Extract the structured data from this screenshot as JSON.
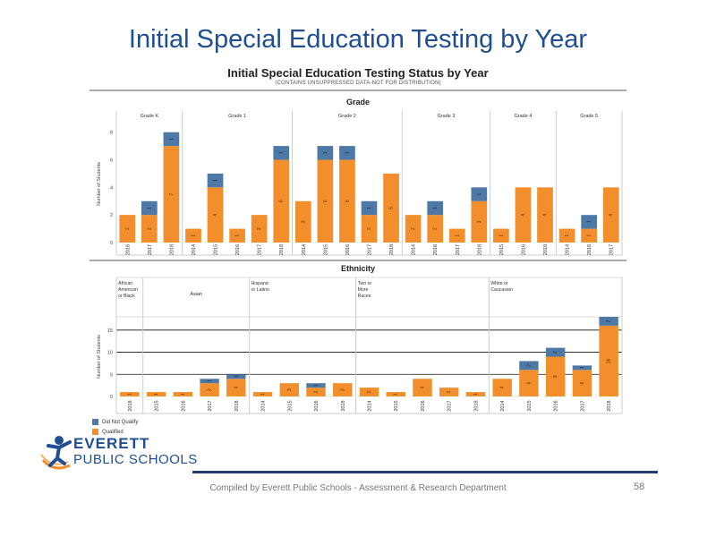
{
  "slide": {
    "title": "Initial Special Education Testing by Year",
    "footer": "Compiled  by Everett Public Schools - Assessment & Research Department",
    "page_number": "58"
  },
  "dashboard": {
    "title": "Initial Special Education Testing Status by Year",
    "subtitle": "(CONTAINS UNSUPPRESSED DATA-NOT FOR DISTRIBUTION)"
  },
  "logo": {
    "line1": "EVERETT",
    "line2": "PUBLIC SCHOOLS"
  },
  "legend": {
    "items": [
      {
        "label": "Did Not Qualify",
        "color": "#4e79a7"
      },
      {
        "label": "Qualified",
        "color": "#f28e2b"
      }
    ]
  },
  "chart_data": [
    {
      "type": "bar",
      "stacked": true,
      "title": "Grade",
      "ylabel": "Number of Students",
      "ylim": [
        0,
        8.5
      ],
      "yticks": [
        0,
        2,
        4,
        6,
        8
      ],
      "groups": [
        {
          "label": "Grade K",
          "categories": [
            "2016",
            "2017",
            "2018"
          ],
          "qualified": [
            2,
            2,
            7
          ],
          "did_not_qualify": [
            null,
            1,
            1
          ]
        },
        {
          "label": "Grade 1",
          "categories": [
            "2014",
            "2015",
            "2016",
            "2017",
            "2018"
          ],
          "qualified": [
            1,
            4,
            1,
            2,
            6
          ],
          "did_not_qualify": [
            null,
            1,
            null,
            null,
            1
          ]
        },
        {
          "label": "Grade 2",
          "categories": [
            "2014",
            "2015",
            "2016",
            "2017",
            "2018"
          ],
          "qualified": [
            3,
            6,
            6,
            2,
            5
          ],
          "did_not_qualify": [
            null,
            1,
            1,
            1,
            null
          ]
        },
        {
          "label": "Grade 3",
          "categories": [
            "2014",
            "2016",
            "2017",
            "2018"
          ],
          "qualified": [
            2,
            2,
            1,
            3
          ],
          "did_not_qualify": [
            null,
            1,
            null,
            1
          ]
        },
        {
          "label": "Grade 4",
          "categories": [
            "2015",
            "2016",
            "2018"
          ],
          "qualified": [
            1,
            4,
            4
          ],
          "did_not_qualify": [
            null,
            null,
            null
          ]
        },
        {
          "label": "Grade 5",
          "categories": [
            "2014",
            "2016",
            "2017"
          ],
          "qualified": [
            1,
            1,
            4
          ],
          "did_not_qualify": [
            null,
            1,
            null
          ]
        }
      ]
    },
    {
      "type": "bar",
      "stacked": true,
      "title": "Ethnicity",
      "ylabel": "Number of Students",
      "ylim": [
        0,
        18
      ],
      "yticks": [
        0,
        5,
        10,
        15
      ],
      "groups": [
        {
          "label": "African American or Black",
          "categories": [
            "2018"
          ],
          "qualified": [
            1
          ],
          "did_not_qualify": [
            null
          ]
        },
        {
          "label": "Asian",
          "categories": [
            "2015",
            "2016",
            "2017",
            "2018"
          ],
          "qualified": [
            1,
            1,
            3,
            4
          ],
          "did_not_qualify": [
            null,
            null,
            1,
            1
          ]
        },
        {
          "label": "Hispanic or Latino",
          "categories": [
            "2014",
            "2015",
            "2016",
            "2018"
          ],
          "qualified": [
            1,
            3,
            2,
            3
          ],
          "did_not_qualify": [
            null,
            null,
            1,
            null
          ]
        },
        {
          "label": "Two or More Races",
          "categories": [
            "2014",
            "2015",
            "2016",
            "2017",
            "2018"
          ],
          "qualified": [
            2,
            1,
            4,
            2,
            1
          ],
          "did_not_qualify": [
            null,
            null,
            null,
            null,
            null
          ]
        },
        {
          "label": "White or Caucasian",
          "categories": [
            "2014",
            "2015",
            "2016",
            "2017",
            "2018"
          ],
          "qualified": [
            4,
            6,
            9,
            6,
            16
          ],
          "did_not_qualify": [
            null,
            2,
            2,
            1,
            2
          ]
        }
      ]
    }
  ]
}
